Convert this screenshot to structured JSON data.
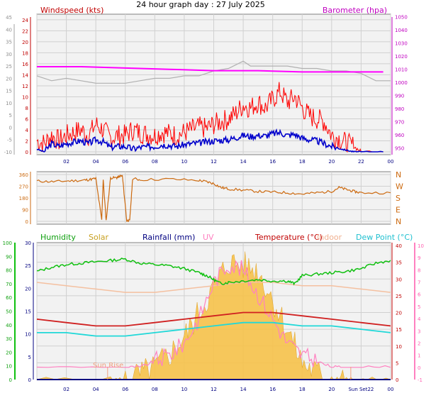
{
  "chart_data": [
    {
      "type": "line",
      "title": "24 hour graph day : 27 July 2025",
      "left_label": "Windspeed (kts)",
      "right_label": "Barometer (hpa)",
      "x_ticks": [
        "02",
        "04",
        "06",
        "08",
        "10",
        "12",
        "14",
        "16",
        "18",
        "20",
        "22",
        "00"
      ],
      "x_range_hours": [
        0,
        24
      ],
      "left_axis_ticks": [
        24,
        22,
        20,
        18,
        16,
        14,
        12,
        10,
        8,
        6,
        4,
        2,
        0
      ],
      "left_ylim": [
        0,
        24.5
      ],
      "left_outer_axis_ticks": [
        45,
        40,
        35,
        30,
        25,
        20,
        15,
        10,
        5,
        0,
        -5,
        -10
      ],
      "right_axis_ticks": [
        1050,
        1040,
        1030,
        1020,
        1010,
        1000,
        990,
        980,
        970,
        960,
        950
      ],
      "right_ylim": [
        945,
        1052
      ],
      "grid": true,
      "colors": {
        "gust": "#ff0000",
        "wind": "#0000cc",
        "barometer": "#ff00ff",
        "grey_trace": "#b0b0b0",
        "left_label": "#c00000",
        "right_label": "#c000c0"
      },
      "series": [
        {
          "name": "barometer",
          "axis": "right",
          "x": [
            0,
            3,
            6,
            9,
            12,
            15,
            18,
            21,
            23.5
          ],
          "y": [
            1012,
            1012,
            1011,
            1010,
            1009,
            1009,
            1008,
            1008,
            1008
          ]
        },
        {
          "name": "grey",
          "axis": "outer",
          "x": [
            0,
            1,
            2,
            3,
            4,
            5,
            6,
            7,
            8,
            9,
            10,
            11,
            12,
            13,
            14,
            14.5,
            16,
            17,
            18,
            19,
            20,
            21,
            22,
            23,
            24
          ],
          "y": [
            21,
            19,
            20,
            19,
            18,
            18,
            18,
            19,
            20,
            20,
            21,
            21,
            23,
            24,
            27,
            25,
            25,
            25,
            24,
            24,
            23,
            23,
            22,
            19,
            19
          ]
        },
        {
          "name": "gust",
          "axis": "left",
          "x": [
            0,
            0.5,
            1,
            1.5,
            2,
            2.5,
            3,
            3.5,
            4,
            4.5,
            5,
            5.5,
            6,
            6.5,
            7,
            7.5,
            8,
            8.5,
            9,
            9.5,
            10,
            10.5,
            11,
            11.5,
            12,
            12.5,
            13,
            13.5,
            14,
            14.5,
            15,
            15.5,
            16,
            16.5,
            17,
            17.5,
            18,
            18.5,
            19,
            19.5,
            20,
            20.5,
            21,
            21.5,
            22,
            23.5
          ],
          "y": [
            2,
            1.5,
            3,
            2,
            3,
            3.5,
            4,
            3,
            5,
            4,
            2.5,
            3,
            3,
            4,
            3.5,
            3.2,
            3,
            3.6,
            3.3,
            3,
            3.5,
            4,
            4.5,
            4.2,
            5,
            5.5,
            6,
            7,
            8.5,
            8,
            9,
            8,
            9.5,
            11,
            9,
            10,
            8,
            6.5,
            6,
            5.5,
            3,
            2.5,
            1.5,
            1,
            0,
            0
          ]
        },
        {
          "name": "wind",
          "axis": "left",
          "x": [
            0,
            0.5,
            1,
            1.5,
            2,
            2.5,
            3,
            3.5,
            4,
            4.5,
            5,
            5.5,
            6,
            6.5,
            7,
            7.5,
            8,
            8.5,
            9,
            9.5,
            10,
            10.5,
            11,
            11.5,
            12,
            12.5,
            13,
            13.5,
            14,
            14.5,
            15,
            15.5,
            16,
            16.5,
            17,
            17.5,
            18,
            18.5,
            19,
            19.5,
            20,
            20.5,
            21,
            21.5,
            22,
            23.5
          ],
          "y": [
            0.5,
            0,
            1.5,
            1,
            1.5,
            1.8,
            2,
            1.5,
            2.2,
            1.8,
            0.8,
            1,
            1,
            0.5,
            0.8,
            0.9,
            1,
            1.3,
            1.2,
            1,
            1.3,
            1.5,
            1.6,
            1.8,
            2,
            2.1,
            2.2,
            2.6,
            3,
            2.8,
            3,
            2.9,
            3.3,
            3.5,
            3,
            3.2,
            2.5,
            2.2,
            2,
            1.5,
            1,
            0.6,
            0.3,
            0,
            0,
            0
          ]
        }
      ]
    },
    {
      "type": "line",
      "x_ticks": [
        "02",
        "04",
        "06",
        "08",
        "10",
        "12",
        "14",
        "16",
        "18",
        "20",
        "22",
        "00"
      ],
      "x_range_hours": [
        0,
        24
      ],
      "left_axis_ticks": [
        360,
        270,
        180,
        90,
        0
      ],
      "right_axis_ticks": [
        "N",
        "W",
        "S",
        "E",
        "N"
      ],
      "ylim": [
        0,
        360
      ],
      "grid": true,
      "colors": {
        "direction": "#cc6a10"
      },
      "series": [
        {
          "name": "direction",
          "x": [
            0,
            1,
            2,
            3,
            3.5,
            4,
            4.4,
            4.5,
            4.7,
            5,
            5.4,
            5.6,
            5.8,
            6.1,
            6.3,
            6.5,
            7,
            9,
            11,
            11.5,
            12,
            12.5,
            13,
            14,
            15,
            16,
            17,
            18,
            19,
            20,
            20.5,
            21,
            21.5,
            22,
            24
          ],
          "y": [
            310,
            305,
            310,
            315,
            320,
            330,
            10,
            320,
            5,
            335,
            335,
            345,
            350,
            5,
            5,
            330,
            320,
            325,
            315,
            305,
            290,
            260,
            250,
            240,
            230,
            225,
            220,
            210,
            220,
            230,
            260,
            245,
            230,
            220,
            220
          ]
        }
      ]
    },
    {
      "type": "area",
      "legend": {
        "humidity": "Humidity",
        "solar": "Solar",
        "rainfall": "Rainfall (mm)",
        "uv": "UV",
        "temperature": "Temperature (°C)",
        "indoor": "Indoor",
        "dew_point": "Dew Point (°C)"
      },
      "x_ticks": [
        "02",
        "04",
        "06",
        "08",
        "10",
        "12",
        "14",
        "16",
        "18",
        "20",
        "Sun Set22",
        "00"
      ],
      "annotations": [
        "Sun Rise"
      ],
      "x_range_hours": [
        0,
        24
      ],
      "humidity_axis_ticks": [
        100,
        90,
        80,
        70,
        60,
        50,
        40,
        30,
        20,
        10,
        0
      ],
      "rain_axis_ticks": [
        30,
        25,
        20,
        15,
        10,
        5,
        0
      ],
      "temp_axis_ticks": [
        40,
        35,
        30,
        25,
        20,
        15,
        10,
        5,
        0
      ],
      "uv_axis_ticks": [
        10,
        9,
        8,
        7,
        6,
        5,
        4,
        3,
        2,
        1,
        0,
        -1
      ],
      "temp_ylim": [
        0,
        40
      ],
      "grid": true,
      "colors": {
        "humidity": "#10c010",
        "solar": "#f0b030",
        "rainfall": "#000080",
        "uv": "#ff80c0",
        "temperature": "#d02020",
        "indoor": "#f4c0a0",
        "dew_point": "#20d8d8"
      },
      "series": [
        {
          "name": "humidity",
          "x": [
            0,
            1,
            2,
            3,
            4,
            5,
            6,
            7,
            8,
            9,
            10,
            11,
            11.5,
            12,
            12.5,
            13,
            14,
            15,
            16,
            17,
            17.5,
            18,
            19,
            20,
            21,
            22,
            23,
            24
          ],
          "y": [
            79,
            82,
            84,
            85,
            86,
            87,
            88,
            85,
            84,
            83,
            81,
            78,
            76,
            73,
            70,
            71,
            72,
            73,
            72,
            72,
            70,
            76,
            77,
            78,
            79,
            81,
            85,
            87
          ]
        },
        {
          "name": "solar",
          "x": [
            0,
            5,
            6,
            7,
            8,
            9,
            10,
            11,
            12,
            13,
            14,
            15,
            16,
            17,
            18,
            19,
            20,
            21,
            21.5,
            24
          ],
          "y": [
            0,
            0,
            0,
            30,
            70,
            150,
            250,
            400,
            550,
            700,
            680,
            650,
            480,
            300,
            100,
            40,
            10,
            0,
            0,
            0
          ]
        },
        {
          "name": "uv",
          "x": [
            0,
            6,
            7,
            8,
            9,
            10,
            11,
            12,
            13,
            14,
            15,
            16,
            17,
            18,
            19,
            20,
            21,
            24
          ],
          "y": [
            0,
            0,
            0,
            0.5,
            1,
            2,
            4,
            7,
            8.5,
            8,
            6,
            4,
            2,
            1,
            0.5,
            0,
            0,
            0
          ]
        },
        {
          "name": "temperature",
          "x": [
            0,
            2,
            4,
            6,
            8,
            10,
            12,
            14,
            16,
            18,
            20,
            22,
            24
          ],
          "y": [
            18,
            17,
            16,
            16,
            17,
            18,
            19,
            20,
            20,
            19,
            18,
            17,
            16
          ]
        },
        {
          "name": "indoor",
          "x": [
            0,
            2,
            4,
            6,
            8,
            10,
            12,
            14,
            16,
            18,
            20,
            22,
            24
          ],
          "y": [
            29,
            28,
            27,
            26,
            26,
            27,
            28,
            29,
            29,
            28,
            28,
            27,
            26
          ]
        },
        {
          "name": "dew_point",
          "x": [
            0,
            2,
            4,
            6,
            8,
            10,
            12,
            14,
            16,
            18,
            20,
            22,
            24
          ],
          "y": [
            14,
            14,
            13,
            13,
            14,
            15,
            16,
            17,
            17,
            16,
            16,
            15,
            14
          ]
        },
        {
          "name": "rainfall",
          "x": [
            0,
            24
          ],
          "y": [
            0,
            0
          ]
        }
      ]
    }
  ]
}
